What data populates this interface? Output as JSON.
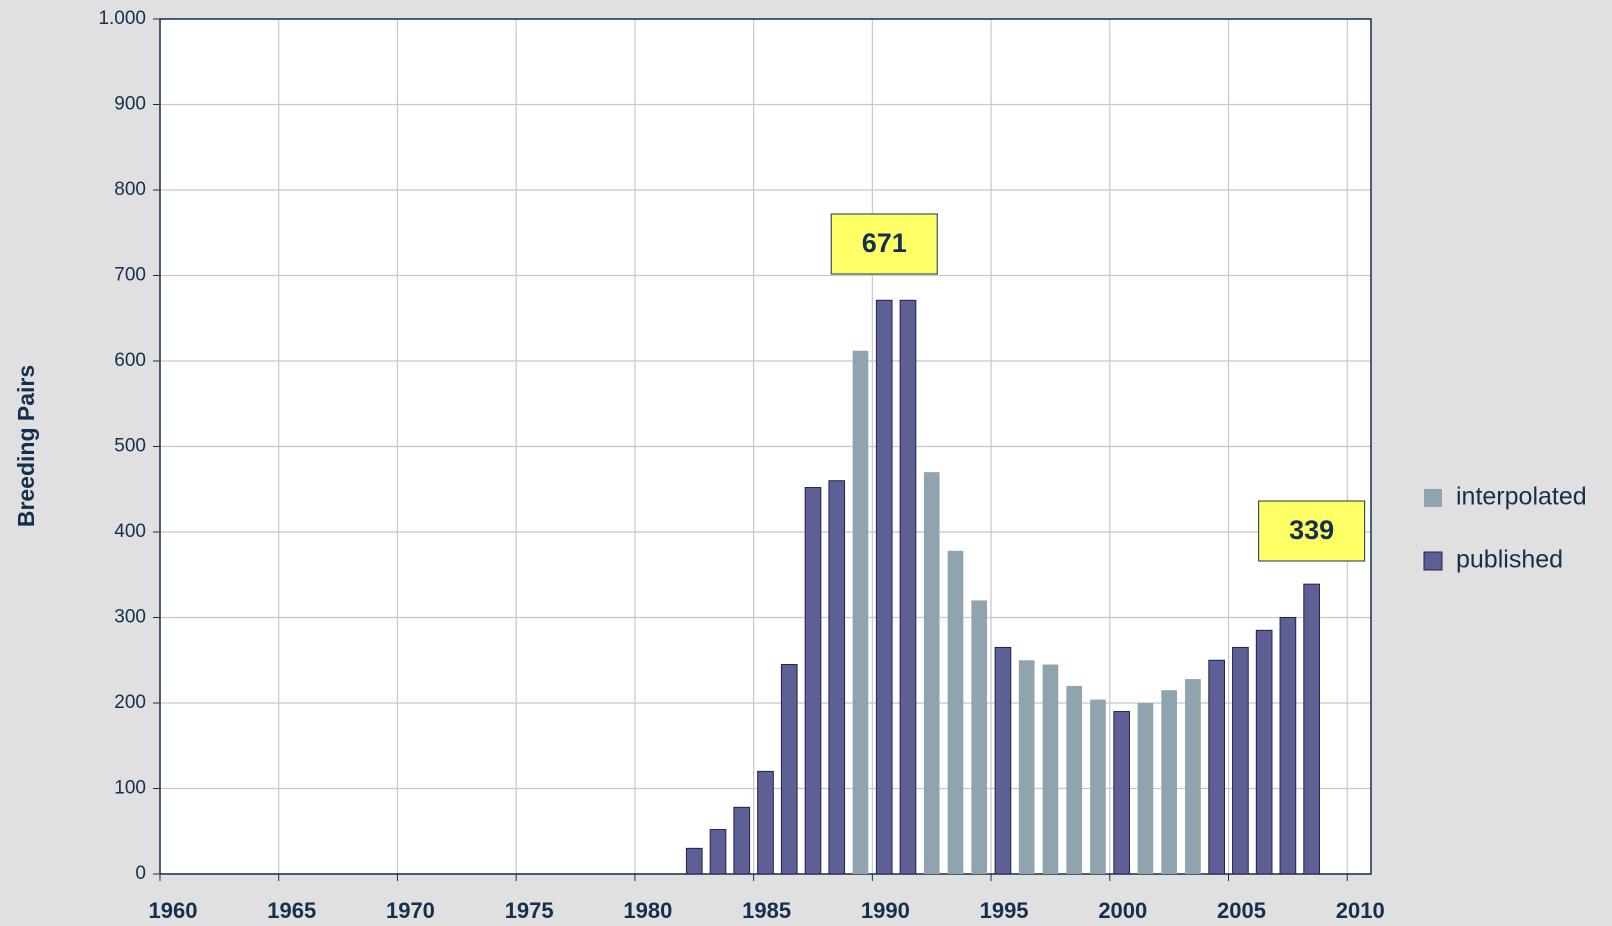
{
  "chart_data": {
    "type": "bar",
    "y_label": "Breeding Pairs",
    "x": [
      1982,
      1983,
      1984,
      1985,
      1986,
      1987,
      1988,
      1989,
      1990,
      1991,
      1992,
      1993,
      1994,
      1995,
      1996,
      1997,
      1998,
      1999,
      2000,
      2001,
      2002,
      2003,
      2004,
      2005,
      2006,
      2007,
      2008
    ],
    "series": [
      {
        "name": "interpolated",
        "color": "#8fa4ae",
        "values": [
          null,
          null,
          null,
          null,
          null,
          null,
          null,
          612,
          null,
          null,
          470,
          378,
          320,
          null,
          250,
          245,
          220,
          204,
          null,
          200,
          215,
          228,
          null,
          null,
          null,
          null,
          null
        ]
      },
      {
        "name": "published",
        "color": "#5e5f94",
        "values": [
          30,
          52,
          78,
          120,
          245,
          452,
          460,
          null,
          671,
          671,
          null,
          null,
          null,
          265,
          null,
          null,
          null,
          null,
          190,
          null,
          null,
          null,
          250,
          265,
          285,
          300,
          339
        ]
      }
    ],
    "annotations": [
      {
        "x": 1990,
        "label": "671"
      },
      {
        "x": 2008,
        "label": "339"
      }
    ],
    "xlim": [
      1960,
      2011
    ],
    "xticks": [
      1960,
      1965,
      1970,
      1975,
      1980,
      1985,
      1990,
      1995,
      2000,
      2005,
      2010
    ],
    "ylim": [
      0,
      1000
    ],
    "yticks": [
      0,
      100,
      200,
      300,
      400,
      500,
      600,
      700,
      800,
      900,
      {
        "value": 1000,
        "label": "1.000"
      }
    ],
    "grid": true,
    "legend": "right"
  }
}
